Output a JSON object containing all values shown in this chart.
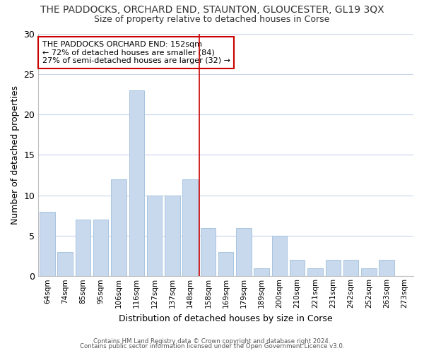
{
  "title": "THE PADDOCKS, ORCHARD END, STAUNTON, GLOUCESTER, GL19 3QX",
  "subtitle": "Size of property relative to detached houses in Corse",
  "xlabel": "Distribution of detached houses by size in Corse",
  "ylabel": "Number of detached properties",
  "bar_labels": [
    "64sqm",
    "74sqm",
    "85sqm",
    "95sqm",
    "106sqm",
    "116sqm",
    "127sqm",
    "137sqm",
    "148sqm",
    "158sqm",
    "169sqm",
    "179sqm",
    "189sqm",
    "200sqm",
    "210sqm",
    "221sqm",
    "231sqm",
    "242sqm",
    "252sqm",
    "263sqm",
    "273sqm"
  ],
  "bar_values": [
    8,
    3,
    7,
    7,
    12,
    23,
    10,
    10,
    12,
    6,
    3,
    6,
    1,
    5,
    2,
    1,
    2,
    2,
    1,
    2,
    0
  ],
  "bar_color": "#c8d9ee",
  "bar_edge_color": "#a8c4e0",
  "vline_index": 8.5,
  "vline_color": "#cc0000",
  "ylim": [
    0,
    30
  ],
  "yticks": [
    0,
    5,
    10,
    15,
    20,
    25,
    30
  ],
  "annotation_title": "THE PADDOCKS ORCHARD END: 152sqm",
  "annotation_line1": "← 72% of detached houses are smaller (84)",
  "annotation_line2": "27% of semi-detached houses are larger (32) →",
  "annotation_box_color": "#ffffff",
  "annotation_box_edge": "#cc0000",
  "footer1": "Contains HM Land Registry data © Crown copyright and database right 2024.",
  "footer2": "Contains public sector information licensed under the Open Government Licence v3.0.",
  "background_color": "#ffffff",
  "grid_color": "#c8d4e8"
}
